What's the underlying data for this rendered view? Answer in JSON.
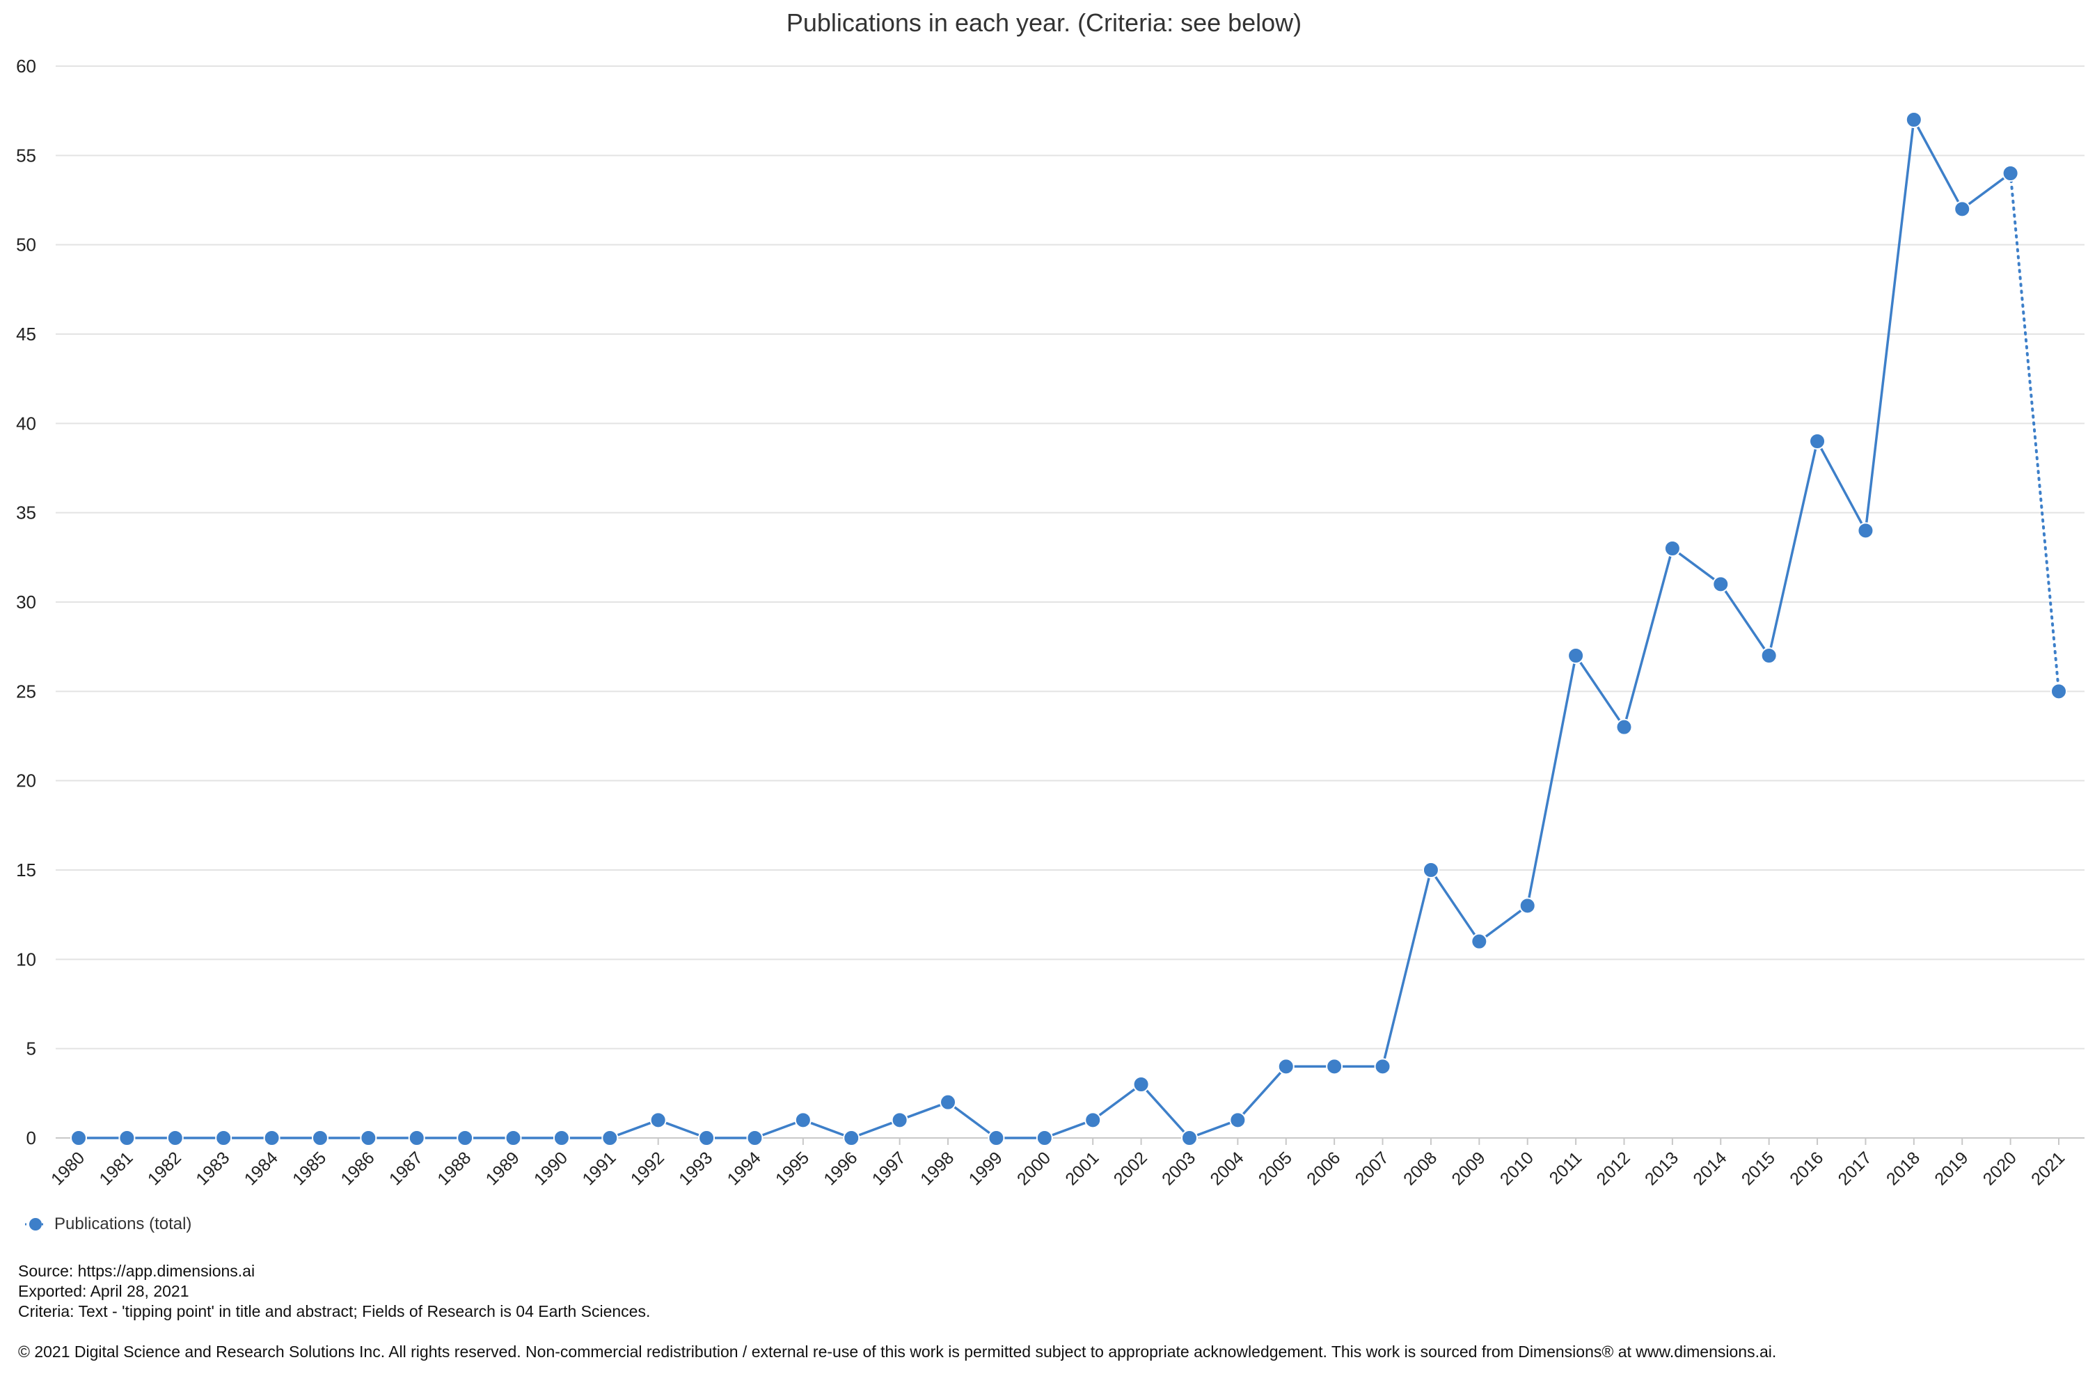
{
  "chart_data": {
    "type": "line",
    "title": "Publications in each year. (Criteria: see below)",
    "xlabel": "",
    "ylabel": "",
    "ylim": [
      0,
      60
    ],
    "yticks": [
      0,
      5,
      10,
      15,
      20,
      25,
      30,
      35,
      40,
      45,
      50,
      55,
      60
    ],
    "grid": true,
    "legend_position": "bottom-left",
    "categories": [
      "1980",
      "1981",
      "1982",
      "1983",
      "1984",
      "1985",
      "1986",
      "1987",
      "1988",
      "1989",
      "1990",
      "1991",
      "1992",
      "1993",
      "1994",
      "1995",
      "1996",
      "1997",
      "1998",
      "1999",
      "2000",
      "2001",
      "2002",
      "2003",
      "2004",
      "2005",
      "2006",
      "2007",
      "2008",
      "2009",
      "2010",
      "2011",
      "2012",
      "2013",
      "2014",
      "2015",
      "2016",
      "2017",
      "2018",
      "2019",
      "2020",
      "2021"
    ],
    "series": [
      {
        "name": "Publications (total)",
        "color": "#3d7fc9",
        "values": [
          0,
          0,
          0,
          0,
          0,
          0,
          0,
          0,
          0,
          0,
          0,
          0,
          1,
          0,
          0,
          1,
          0,
          1,
          2,
          0,
          0,
          1,
          3,
          0,
          1,
          4,
          4,
          4,
          15,
          11,
          13,
          27,
          23,
          33,
          31,
          27,
          39,
          34,
          57,
          52,
          54,
          25
        ],
        "dotted_last_segment": true
      }
    ]
  },
  "footer": {
    "source": "Source: https://app.dimensions.ai",
    "exported": "Exported: April 28, 2021",
    "criteria": "Criteria: Text - 'tipping point' in title and abstract; Fields of Research is 04 Earth Sciences.",
    "copyright": "© 2021 Digital Science and Research Solutions Inc. All rights reserved. Non-commercial redistribution / external re-use of this work is permitted subject to appropriate acknowledgement. This work is sourced from Dimensions® at www.dimensions.ai."
  }
}
